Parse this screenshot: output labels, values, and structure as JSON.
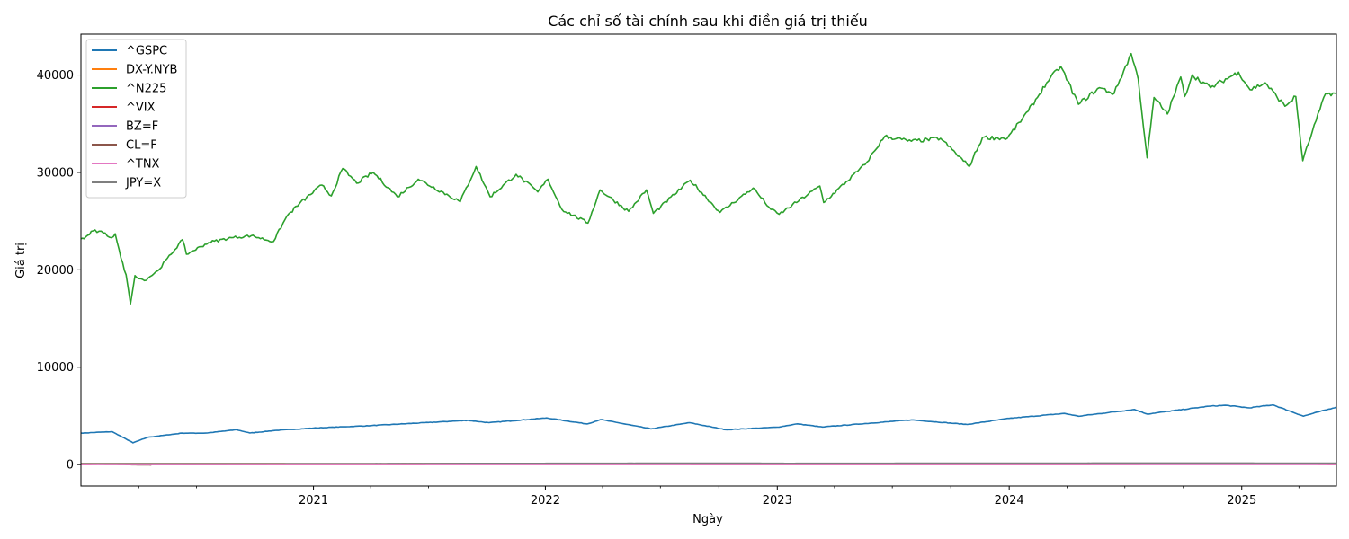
{
  "chart_data": {
    "type": "line",
    "title": "Các chỉ số tài chính sau khi điền giá trị thiếu",
    "xlabel": "Ngày",
    "ylabel": "Giá trị",
    "xlim": [
      "2020-01-01",
      "2025-05-30"
    ],
    "ylim": [
      -2200,
      44200
    ],
    "y_ticks": [
      0,
      10000,
      20000,
      30000,
      40000
    ],
    "x_ticks": [
      "2021-01-01",
      "2022-01-01",
      "2023-01-01",
      "2024-01-01",
      "2025-01-01"
    ],
    "x_tick_labels": [
      "2021",
      "2022",
      "2023",
      "2024",
      "2025"
    ],
    "grid": false,
    "legend_position": "top-left",
    "series": [
      {
        "name": "^GSPC",
        "color": "#1f77b4",
        "points": [
          [
            "2020-01-01",
            3230
          ],
          [
            "2020-02-19",
            3380
          ],
          [
            "2020-03-23",
            2240
          ],
          [
            "2020-04-15",
            2800
          ],
          [
            "2020-06-08",
            3230
          ],
          [
            "2020-07-15",
            3230
          ],
          [
            "2020-09-02",
            3580
          ],
          [
            "2020-09-23",
            3240
          ],
          [
            "2020-11-01",
            3500
          ],
          [
            "2021-01-01",
            3750
          ],
          [
            "2021-04-01",
            4000
          ],
          [
            "2021-07-01",
            4320
          ],
          [
            "2021-09-01",
            4540
          ],
          [
            "2021-10-04",
            4300
          ],
          [
            "2022-01-03",
            4790
          ],
          [
            "2022-03-08",
            4170
          ],
          [
            "2022-03-29",
            4630
          ],
          [
            "2022-06-16",
            3670
          ],
          [
            "2022-08-16",
            4300
          ],
          [
            "2022-10-12",
            3580
          ],
          [
            "2023-01-01",
            3840
          ],
          [
            "2023-02-02",
            4180
          ],
          [
            "2023-03-13",
            3860
          ],
          [
            "2023-07-31",
            4590
          ],
          [
            "2023-10-27",
            4120
          ],
          [
            "2024-01-01",
            4750
          ],
          [
            "2024-03-28",
            5250
          ],
          [
            "2024-04-19",
            4970
          ],
          [
            "2024-07-16",
            5660
          ],
          [
            "2024-08-05",
            5190
          ],
          [
            "2024-11-11",
            6000
          ],
          [
            "2024-12-06",
            6090
          ],
          [
            "2025-01-13",
            5830
          ],
          [
            "2025-02-19",
            6140
          ],
          [
            "2025-04-08",
            4980
          ],
          [
            "2025-05-30",
            5910
          ]
        ]
      },
      {
        "name": "DX-Y.NYB",
        "color": "#ff7f0e",
        "points": [
          [
            "2020-01-01",
            97
          ],
          [
            "2020-03-19",
            103
          ],
          [
            "2020-12-31",
            90
          ],
          [
            "2021-12-31",
            96
          ],
          [
            "2022-09-27",
            114
          ],
          [
            "2022-12-30",
            104
          ],
          [
            "2023-12-29",
            101
          ],
          [
            "2024-12-31",
            108
          ],
          [
            "2025-01-13",
            110
          ],
          [
            "2025-04-21",
            98
          ],
          [
            "2025-05-30",
            99
          ]
        ]
      },
      {
        "name": "^N225",
        "color": "#2ca02c",
        "points": [
          [
            "2020-01-01",
            23200
          ],
          [
            "2020-01-06",
            23200
          ],
          [
            "2020-01-20",
            24000
          ],
          [
            "2020-02-05",
            23800
          ],
          [
            "2020-02-18",
            23300
          ],
          [
            "2020-02-24",
            23700
          ],
          [
            "2020-03-04",
            21200
          ],
          [
            "2020-03-12",
            19500
          ],
          [
            "2020-03-19",
            16500
          ],
          [
            "2020-03-26",
            19400
          ],
          [
            "2020-04-10",
            18900
          ],
          [
            "2020-05-01",
            19900
          ],
          [
            "2020-06-09",
            23100
          ],
          [
            "2020-06-15",
            21600
          ],
          [
            "2020-07-20",
            22800
          ],
          [
            "2020-08-25",
            23300
          ],
          [
            "2020-09-25",
            23500
          ],
          [
            "2020-10-30",
            22900
          ],
          [
            "2020-11-20",
            25500
          ],
          [
            "2020-12-10",
            26800
          ],
          [
            "2021-01-14",
            28700
          ],
          [
            "2021-01-29",
            27600
          ],
          [
            "2021-02-16",
            30400
          ],
          [
            "2021-03-10",
            28900
          ],
          [
            "2021-04-05",
            30000
          ],
          [
            "2021-05-13",
            27500
          ],
          [
            "2021-06-15",
            29300
          ],
          [
            "2021-08-20",
            27000
          ],
          [
            "2021-09-14",
            30600
          ],
          [
            "2021-10-06",
            27500
          ],
          [
            "2021-11-16",
            29800
          ],
          [
            "2021-12-20",
            28000
          ],
          [
            "2022-01-05",
            29300
          ],
          [
            "2022-01-27",
            26200
          ],
          [
            "2022-03-09",
            24800
          ],
          [
            "2022-03-28",
            28200
          ],
          [
            "2022-05-12",
            26000
          ],
          [
            "2022-06-09",
            28200
          ],
          [
            "2022-06-20",
            25800
          ],
          [
            "2022-08-17",
            29200
          ],
          [
            "2022-10-03",
            25900
          ],
          [
            "2022-11-24",
            28400
          ],
          [
            "2022-12-22",
            26200
          ],
          [
            "2023-01-04",
            25700
          ],
          [
            "2023-03-09",
            28600
          ],
          [
            "2023-03-15",
            26900
          ],
          [
            "2023-05-19",
            30800
          ],
          [
            "2023-06-19",
            33700
          ],
          [
            "2023-07-31",
            33200
          ],
          [
            "2023-09-15",
            33500
          ],
          [
            "2023-10-30",
            30600
          ],
          [
            "2023-11-20",
            33600
          ],
          [
            "2023-12-29",
            33500
          ],
          [
            "2024-01-31",
            36300
          ],
          [
            "2024-02-29",
            39200
          ],
          [
            "2024-03-22",
            40900
          ],
          [
            "2024-04-19",
            37000
          ],
          [
            "2024-05-22",
            38700
          ],
          [
            "2024-06-14",
            38100
          ],
          [
            "2024-07-11",
            42200
          ],
          [
            "2024-07-22",
            39600
          ],
          [
            "2024-08-05",
            31500
          ],
          [
            "2024-08-16",
            37700
          ],
          [
            "2024-09-06",
            36000
          ],
          [
            "2024-09-27",
            39800
          ],
          [
            "2024-10-03",
            37800
          ],
          [
            "2024-10-15",
            40000
          ],
          [
            "2024-11-13",
            38700
          ],
          [
            "2024-12-27",
            40300
          ],
          [
            "2025-01-14",
            38500
          ],
          [
            "2025-02-07",
            39200
          ],
          [
            "2025-03-10",
            36800
          ],
          [
            "2025-03-27",
            37800
          ],
          [
            "2025-04-07",
            31200
          ],
          [
            "2025-04-22",
            34200
          ],
          [
            "2025-05-13",
            38100
          ],
          [
            "2025-05-30",
            38100
          ]
        ]
      },
      {
        "name": "^VIX",
        "color": "#d62728",
        "points": [
          [
            "2020-01-01",
            14
          ],
          [
            "2020-03-16",
            82
          ],
          [
            "2020-06-01",
            28
          ],
          [
            "2021-01-01",
            22
          ],
          [
            "2022-03-07",
            36
          ],
          [
            "2023-01-01",
            21
          ],
          [
            "2024-01-01",
            13
          ],
          [
            "2024-08-05",
            38
          ],
          [
            "2025-04-08",
            52
          ],
          [
            "2025-05-30",
            18
          ]
        ]
      },
      {
        "name": "BZ=F",
        "color": "#9467bd",
        "points": [
          [
            "2020-01-01",
            66
          ],
          [
            "2020-04-21",
            19
          ],
          [
            "2021-01-01",
            51
          ],
          [
            "2022-03-08",
            127
          ],
          [
            "2022-06-08",
            123
          ],
          [
            "2023-01-01",
            82
          ],
          [
            "2024-01-01",
            78
          ],
          [
            "2025-01-01",
            75
          ],
          [
            "2025-05-30",
            64
          ]
        ]
      },
      {
        "name": "CL=F",
        "color": "#8c564b",
        "points": [
          [
            "2020-01-01",
            61
          ],
          [
            "2020-04-20",
            -37
          ],
          [
            "2020-04-21",
            10
          ],
          [
            "2021-01-01",
            48
          ],
          [
            "2022-03-08",
            123
          ],
          [
            "2023-01-01",
            80
          ],
          [
            "2024-01-01",
            72
          ],
          [
            "2025-01-01",
            72
          ],
          [
            "2025-05-30",
            61
          ]
        ]
      },
      {
        "name": "^TNX",
        "color": "#e377c2",
        "points": [
          [
            "2020-01-01",
            1.9
          ],
          [
            "2020-03-09",
            0.5
          ],
          [
            "2021-03-31",
            1.7
          ],
          [
            "2022-10-21",
            4.2
          ],
          [
            "2023-10-19",
            5.0
          ],
          [
            "2024-12-31",
            4.6
          ],
          [
            "2025-05-30",
            4.4
          ]
        ]
      },
      {
        "name": "JPY=X",
        "color": "#7f7f7f",
        "points": [
          [
            "2020-01-01",
            108
          ],
          [
            "2021-01-01",
            103
          ],
          [
            "2022-10-21",
            150
          ],
          [
            "2023-01-16",
            128
          ],
          [
            "2024-07-10",
            161
          ],
          [
            "2025-01-10",
            158
          ],
          [
            "2025-05-30",
            144
          ]
        ]
      }
    ]
  }
}
